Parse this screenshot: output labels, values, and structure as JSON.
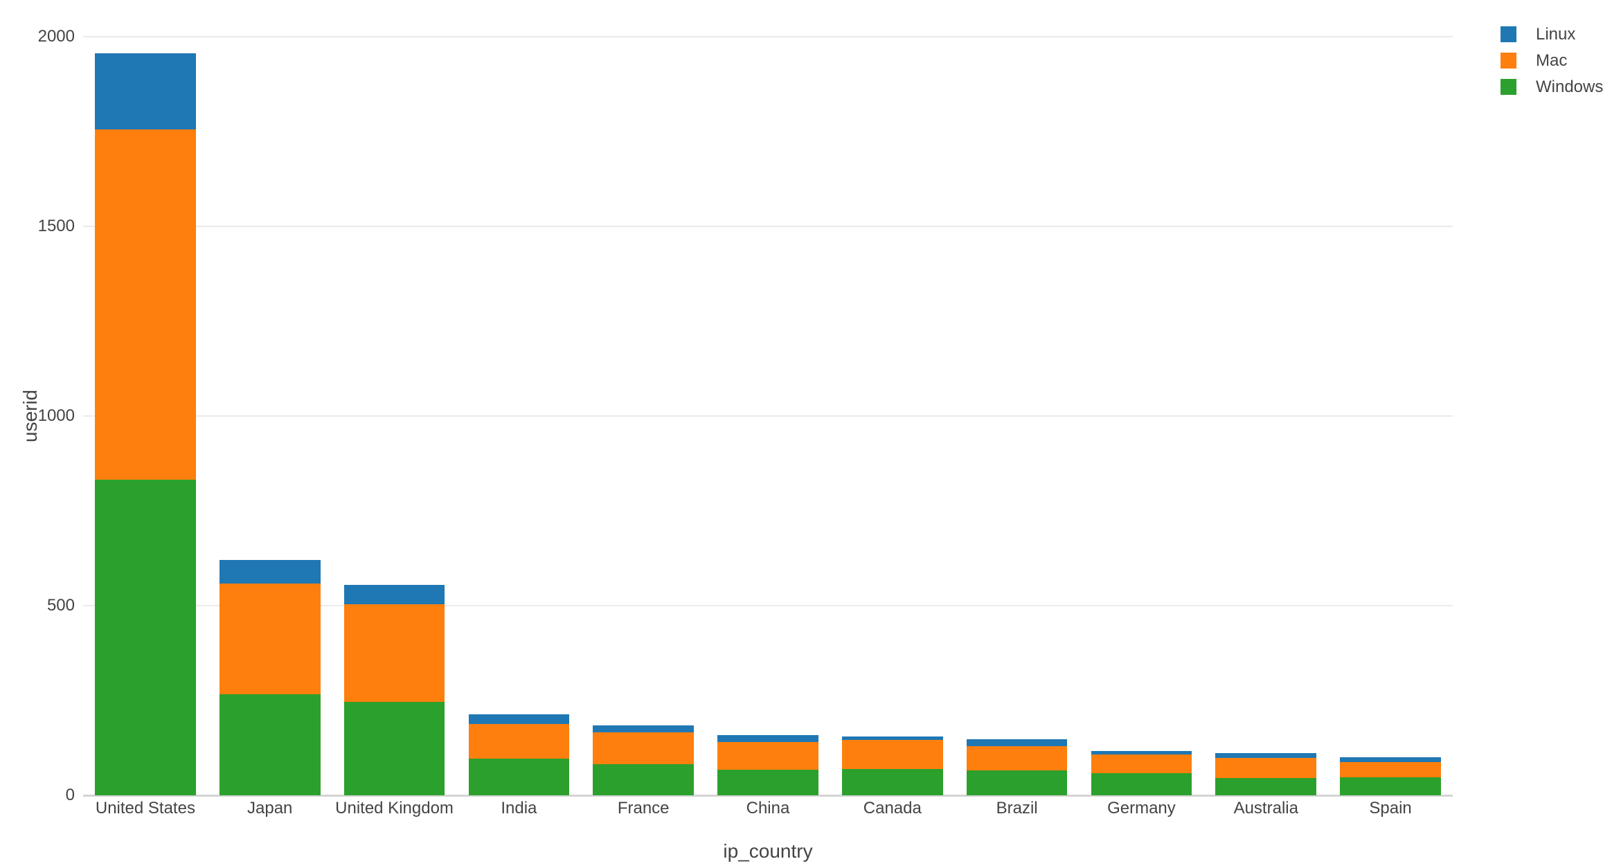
{
  "chart_data": {
    "type": "bar",
    "stacked": true,
    "title": "",
    "xlabel": "ip_country",
    "ylabel": "userid",
    "categories": [
      "United States",
      "Japan",
      "United Kingdom",
      "India",
      "France",
      "China",
      "Canada",
      "Brazil",
      "Germany",
      "Australia",
      "Spain"
    ],
    "series": [
      {
        "name": "Linux",
        "color": "#1f77b4",
        "values": [
          200,
          62,
          51,
          26,
          18,
          18,
          9,
          18,
          9,
          12,
          12
        ]
      },
      {
        "name": "Mac",
        "color": "#ff7f0e",
        "values": [
          924,
          292,
          258,
          91,
          84,
          73,
          77,
          64,
          50,
          53,
          41
        ]
      },
      {
        "name": "Windows",
        "color": "#2ca02c",
        "values": [
          832,
          267,
          246,
          97,
          82,
          68,
          69,
          66,
          58,
          46,
          47
        ]
      }
    ],
    "stack_order_bottom_to_top": [
      "Windows",
      "Mac",
      "Linux"
    ],
    "y_ticks": [
      0,
      500,
      1000,
      1500,
      2000
    ],
    "ylim": [
      0,
      2000
    ],
    "grid": true,
    "legend_position": "top-right",
    "legend_labels": [
      "Linux",
      "Mac",
      "Windows"
    ],
    "colors": {
      "background": "#ffffff",
      "text": "#444444",
      "gridline": "#ebebeb",
      "axis_line": "#d4d4d4"
    }
  }
}
